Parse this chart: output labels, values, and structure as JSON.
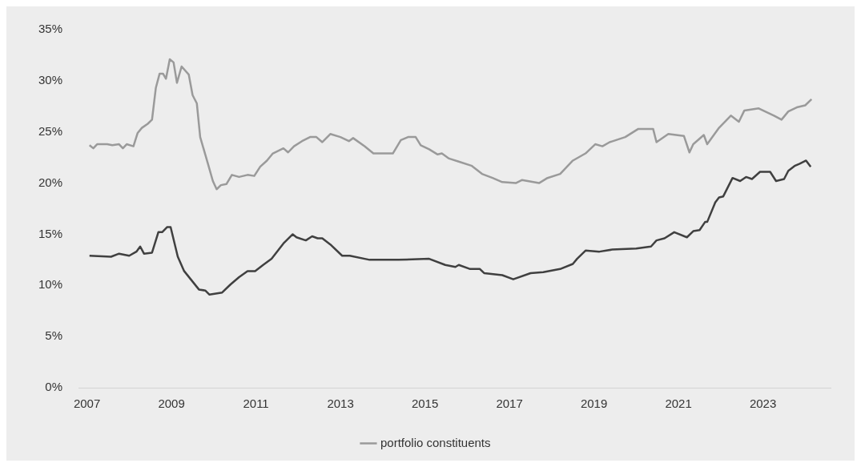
{
  "chart_data": {
    "type": "line",
    "legend": "bottom",
    "grid": false,
    "marker": "none",
    "line_style": "solid",
    "xlim": [
      2006.8,
      2024.6
    ],
    "xticks": [
      2007,
      2009,
      2011,
      2013,
      2015,
      2017,
      2019,
      2021,
      2023
    ],
    "ylim": [
      0,
      35
    ],
    "yticks": [
      {
        "value": 0,
        "label": "0%"
      },
      {
        "value": 5,
        "label": "5%"
      },
      {
        "value": 10,
        "label": "10%"
      },
      {
        "value": 15,
        "label": "15%"
      },
      {
        "value": 20,
        "label": "20%"
      },
      {
        "value": 25,
        "label": "25%"
      },
      {
        "value": 30,
        "label": "30%"
      },
      {
        "value": 35,
        "label": "35%"
      }
    ],
    "series": [
      {
        "name": "portfolio constituents",
        "color": "#9a9a9a",
        "x": [
          2007.06,
          2007.15,
          2007.24,
          2007.48,
          2007.6,
          2007.76,
          2007.85,
          2007.94,
          2008.1,
          2008.2,
          2008.3,
          2008.44,
          2008.54,
          2008.63,
          2008.72,
          2008.8,
          2008.87,
          2008.96,
          2009.05,
          2009.13,
          2009.24,
          2009.41,
          2009.5,
          2009.6,
          2009.68,
          2009.87,
          2009.98,
          2010.07,
          2010.17,
          2010.3,
          2010.43,
          2010.6,
          2010.8,
          2010.96,
          2011.1,
          2011.26,
          2011.4,
          2011.65,
          2011.76,
          2011.9,
          2012.09,
          2012.28,
          2012.43,
          2012.57,
          2012.76,
          2013.0,
          2013.2,
          2013.3,
          2013.57,
          2013.78,
          2014.24,
          2014.43,
          2014.6,
          2014.78,
          2014.9,
          2015.1,
          2015.3,
          2015.4,
          2015.57,
          2015.8,
          2016.1,
          2016.35,
          2016.6,
          2016.83,
          2017.15,
          2017.3,
          2017.7,
          2017.9,
          2018.2,
          2018.5,
          2018.8,
          2019.03,
          2019.2,
          2019.37,
          2019.74,
          2020.05,
          2020.4,
          2020.48,
          2020.76,
          2021.13,
          2021.26,
          2021.35,
          2021.6,
          2021.68,
          2021.96,
          2022.24,
          2022.43,
          2022.56,
          2022.9,
          2023.26,
          2023.44,
          2023.6,
          2023.8,
          2024.0,
          2024.15
        ],
        "values": [
          23.7,
          23.4,
          23.8,
          23.8,
          23.7,
          23.8,
          23.4,
          23.8,
          23.6,
          24.9,
          25.4,
          25.8,
          26.2,
          29.3,
          30.7,
          30.7,
          30.2,
          32.1,
          31.8,
          29.8,
          31.4,
          30.6,
          28.6,
          27.8,
          24.5,
          21.8,
          20.2,
          19.4,
          19.8,
          19.9,
          20.8,
          20.6,
          20.8,
          20.7,
          21.6,
          22.2,
          22.9,
          23.4,
          23.0,
          23.6,
          24.1,
          24.5,
          24.5,
          24.0,
          24.8,
          24.5,
          24.1,
          24.4,
          23.6,
          22.9,
          22.9,
          24.2,
          24.5,
          24.5,
          23.7,
          23.3,
          22.8,
          22.9,
          22.4,
          22.1,
          21.7,
          20.9,
          20.5,
          20.1,
          20.0,
          20.3,
          20.0,
          20.5,
          20.9,
          22.2,
          22.9,
          23.8,
          23.6,
          24.0,
          24.5,
          25.3,
          25.3,
          24.0,
          24.8,
          24.6,
          23.0,
          23.8,
          24.7,
          23.8,
          25.4,
          26.6,
          26.0,
          27.1,
          27.3,
          26.6,
          26.2,
          27.0,
          27.4,
          27.6,
          28.2
        ]
      },
      {
        "color": "#404040",
        "x": [
          2007.06,
          2007.57,
          2007.76,
          2008.0,
          2008.17,
          2008.26,
          2008.35,
          2008.54,
          2008.69,
          2008.78,
          2008.9,
          2008.98,
          2009.15,
          2009.3,
          2009.65,
          2009.8,
          2009.9,
          2010.2,
          2010.4,
          2010.6,
          2010.8,
          2010.98,
          2011.17,
          2011.37,
          2011.65,
          2011.87,
          2011.96,
          2012.18,
          2012.33,
          2012.46,
          2012.57,
          2012.76,
          2013.04,
          2013.22,
          2013.69,
          2014.37,
          2015.1,
          2015.48,
          2015.72,
          2015.8,
          2016.07,
          2016.3,
          2016.4,
          2016.83,
          2017.09,
          2017.5,
          2017.8,
          2018.2,
          2018.5,
          2018.6,
          2018.8,
          2019.13,
          2019.43,
          2020.0,
          2020.35,
          2020.48,
          2020.67,
          2020.9,
          2021.2,
          2021.35,
          2021.5,
          2021.63,
          2021.68,
          2021.87,
          2021.96,
          2022.06,
          2022.28,
          2022.46,
          2022.6,
          2022.74,
          2022.93,
          2023.17,
          2023.31,
          2023.5,
          2023.6,
          2023.76,
          2023.87,
          2024.02,
          2024.13
        ],
        "values": [
          12.9,
          12.8,
          13.1,
          12.9,
          13.3,
          13.8,
          13.1,
          13.2,
          15.2,
          15.2,
          15.7,
          15.7,
          12.8,
          11.4,
          9.6,
          9.5,
          9.1,
          9.3,
          10.1,
          10.8,
          11.4,
          11.4,
          12.0,
          12.6,
          14.1,
          15.0,
          14.7,
          14.4,
          14.8,
          14.6,
          14.6,
          14.0,
          12.9,
          12.9,
          12.5,
          12.5,
          12.6,
          12.0,
          11.8,
          12.0,
          11.6,
          11.6,
          11.2,
          11.0,
          10.6,
          11.2,
          11.3,
          11.6,
          12.1,
          12.6,
          13.4,
          13.3,
          13.5,
          13.6,
          13.8,
          14.4,
          14.6,
          15.2,
          14.7,
          15.3,
          15.4,
          16.2,
          16.2,
          18.1,
          18.6,
          18.7,
          20.5,
          20.2,
          20.6,
          20.4,
          21.1,
          21.1,
          20.2,
          20.4,
          21.2,
          21.7,
          21.9,
          22.2,
          21.6
        ]
      }
    ]
  }
}
